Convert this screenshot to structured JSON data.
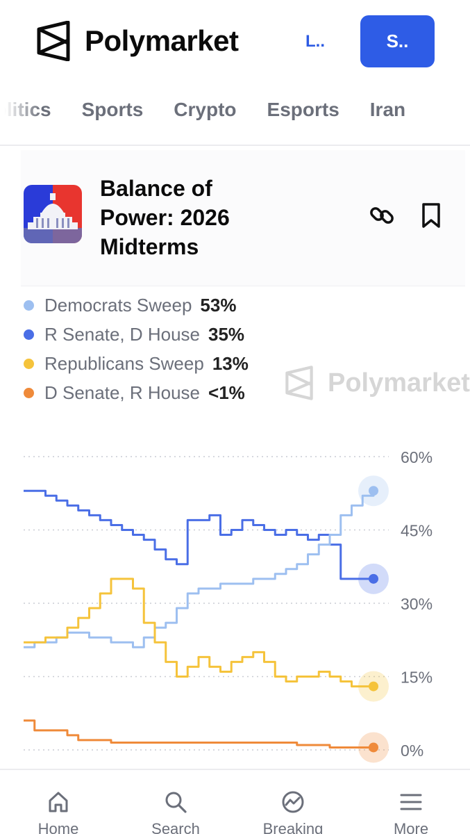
{
  "header": {
    "logo_text": "Polymarket",
    "login_label": "L..",
    "signup_label": "S..",
    "accent": "#2e5ce6"
  },
  "nav": {
    "items": [
      "Politics",
      "Sports",
      "Crypto",
      "Esports",
      "Iran"
    ]
  },
  "market": {
    "title": "Balance of Power: 2026 Midterms",
    "link_icon": "link-icon",
    "bookmark_icon": "bookmark-icon"
  },
  "legend": [
    {
      "name": "Democrats Sweep",
      "value": "53%",
      "color": "#9dbff0"
    },
    {
      "name": "R Senate, D House",
      "value": "35%",
      "color": "#4a6ee6"
    },
    {
      "name": "Republicans Sweep",
      "value": "13%",
      "color": "#f5c33b"
    },
    {
      "name": "D Senate, R House",
      "value": "<1%",
      "color": "#ef8a3a"
    }
  ],
  "watermark_text": "Polymarket",
  "chart_data": {
    "type": "line",
    "ylim": [
      0,
      60
    ],
    "yticks": [
      "60%",
      "45%",
      "30%",
      "15%",
      "0%"
    ],
    "grid": true,
    "series": [
      {
        "name": "R Senate, D House",
        "color": "#4a6ee6",
        "values": [
          53,
          53,
          52,
          51,
          50,
          49,
          48,
          47,
          46,
          45,
          44,
          43,
          41,
          39,
          38,
          47,
          47,
          48,
          44,
          45,
          47,
          46,
          45,
          44,
          45,
          44,
          43,
          44,
          42,
          35,
          35,
          35,
          35
        ]
      },
      {
        "name": "Democrats Sweep",
        "color": "#9dbff0",
        "values": [
          21,
          22,
          22,
          23,
          24,
          24,
          23,
          23,
          22,
          22,
          21,
          23,
          25,
          26,
          29,
          32,
          33,
          33,
          34,
          34,
          34,
          35,
          35,
          36,
          37,
          38,
          40,
          42,
          44,
          48,
          50,
          52,
          53
        ]
      },
      {
        "name": "Republicans Sweep",
        "color": "#f5c33b",
        "values": [
          22,
          22,
          23,
          23,
          25,
          27,
          29,
          32,
          35,
          35,
          33,
          26,
          22,
          18,
          15,
          17,
          19,
          17,
          16,
          18,
          19,
          20,
          18,
          15,
          14,
          15,
          15,
          16,
          15,
          14,
          13,
          13,
          13
        ]
      },
      {
        "name": "D Senate, R House",
        "color": "#ef8a3a",
        "values": [
          6,
          4,
          4,
          4,
          3,
          2,
          2,
          2,
          1.5,
          1.5,
          1.5,
          1.5,
          1.5,
          1.5,
          1.5,
          1.5,
          1.5,
          1.5,
          1.5,
          1.5,
          1.5,
          1.5,
          1.5,
          1.5,
          1.5,
          1,
          1,
          1,
          0.5,
          0.5,
          0.5,
          0.5,
          0.5
        ]
      }
    ]
  },
  "tabs": [
    {
      "label": "Home",
      "icon": "home-icon"
    },
    {
      "label": "Search",
      "icon": "search-icon"
    },
    {
      "label": "Breaking",
      "icon": "breaking-icon"
    },
    {
      "label": "More",
      "icon": "menu-icon"
    }
  ]
}
